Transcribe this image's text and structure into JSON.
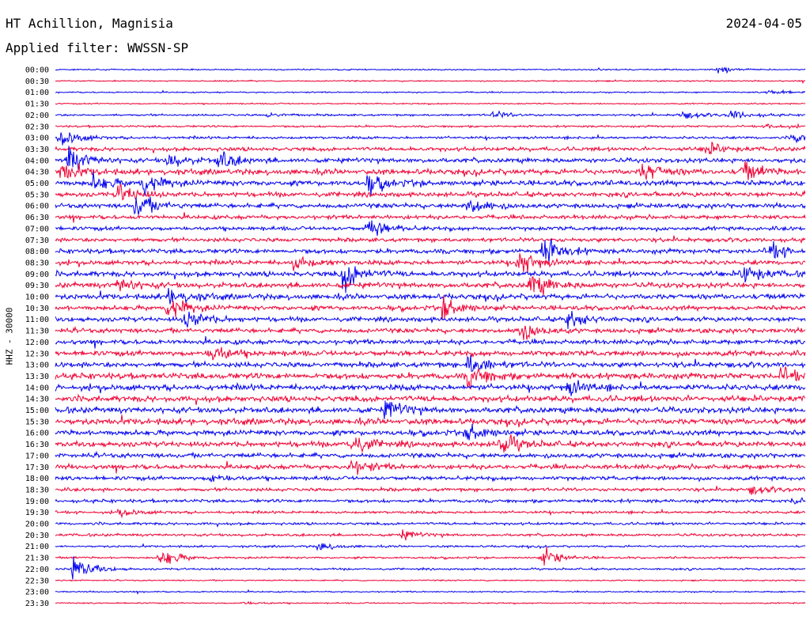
{
  "header": {
    "station": "HT Achillion, Magnisia",
    "date": "2024-04-05",
    "filter": "Applied filter: WWSSN-SP"
  },
  "axis": {
    "ylabel": "HHZ - 30000"
  },
  "colors": {
    "trace_a": "#0000ee",
    "trace_b": "#ee0033",
    "background": "#ffffff"
  },
  "chart_data": {
    "type": "line",
    "chart_kind": "helicorder",
    "title": "HT Achillion, Magnisia",
    "subtitle": "Applied filter: WWSSN-SP",
    "ylabel": "HHZ - 30000",
    "xlabel": "",
    "row_labels": [
      "00:00",
      "00:30",
      "01:00",
      "01:30",
      "02:00",
      "02:30",
      "03:00",
      "03:30",
      "04:00",
      "04:30",
      "05:00",
      "05:30",
      "06:00",
      "06:30",
      "07:00",
      "07:30",
      "08:00",
      "08:30",
      "09:00",
      "09:30",
      "10:00",
      "10:30",
      "11:00",
      "11:30",
      "12:00",
      "12:30",
      "13:00",
      "13:30",
      "14:00",
      "14:30",
      "15:00",
      "15:30",
      "16:00",
      "16:30",
      "17:00",
      "17:30",
      "18:00",
      "18:30",
      "19:00",
      "19:30",
      "20:00",
      "20:30",
      "21:00",
      "21:30",
      "22:00",
      "22:30",
      "23:00",
      "23:30"
    ],
    "noise_level": [
      0.2,
      0.2,
      0.2,
      0.2,
      0.3,
      0.3,
      0.4,
      0.6,
      0.7,
      0.8,
      0.8,
      0.7,
      0.7,
      0.6,
      0.6,
      0.6,
      0.7,
      0.7,
      0.8,
      0.8,
      0.8,
      0.7,
      0.7,
      0.7,
      0.7,
      0.8,
      0.8,
      0.9,
      0.9,
      0.9,
      0.9,
      0.9,
      0.8,
      0.8,
      0.7,
      0.7,
      0.6,
      0.5,
      0.5,
      0.4,
      0.4,
      0.4,
      0.3,
      0.3,
      0.3,
      0.2,
      0.2,
      0.2
    ],
    "events": [
      {
        "row": 0,
        "minute": 26.5,
        "amp": 0.8
      },
      {
        "row": 2,
        "minute": 28.5,
        "amp": 0.9
      },
      {
        "row": 4,
        "minute": 8.5,
        "amp": 0.6
      },
      {
        "row": 4,
        "minute": 17.5,
        "amp": 1.0
      },
      {
        "row": 4,
        "minute": 25,
        "amp": 1.2
      },
      {
        "row": 4,
        "minute": 27,
        "amp": 1.5
      },
      {
        "row": 5,
        "minute": 28.5,
        "amp": 0.8
      },
      {
        "row": 6,
        "minute": 0.2,
        "amp": 2.5
      },
      {
        "row": 6,
        "minute": 29.5,
        "amp": 1.5
      },
      {
        "row": 7,
        "minute": 26,
        "amp": 1.8
      },
      {
        "row": 8,
        "minute": 0.5,
        "amp": 3.5
      },
      {
        "row": 8,
        "minute": 4.5,
        "amp": 2.0
      },
      {
        "row": 8,
        "minute": 6.5,
        "amp": 2.8
      },
      {
        "row": 9,
        "minute": 0.2,
        "amp": 2.5
      },
      {
        "row": 9,
        "minute": 23.5,
        "amp": 3.0
      },
      {
        "row": 9,
        "minute": 27.5,
        "amp": 2.5
      },
      {
        "row": 10,
        "minute": 1.5,
        "amp": 2.0
      },
      {
        "row": 10,
        "minute": 3.5,
        "amp": 3.0
      },
      {
        "row": 10,
        "minute": 12.5,
        "amp": 2.5
      },
      {
        "row": 11,
        "minute": 2.5,
        "amp": 2.8
      },
      {
        "row": 12,
        "minute": 3.2,
        "amp": 3.5
      },
      {
        "row": 12,
        "minute": 16.5,
        "amp": 2.5
      },
      {
        "row": 14,
        "minute": 12.5,
        "amp": 2.8
      },
      {
        "row": 16,
        "minute": 19.5,
        "amp": 4.0
      },
      {
        "row": 16,
        "minute": 28.5,
        "amp": 2.5
      },
      {
        "row": 17,
        "minute": 18.5,
        "amp": 3.5
      },
      {
        "row": 17,
        "minute": 9.5,
        "amp": 2.0
      },
      {
        "row": 18,
        "minute": 11.5,
        "amp": 4.5
      },
      {
        "row": 18,
        "minute": 27.5,
        "amp": 2.8
      },
      {
        "row": 19,
        "minute": 2.5,
        "amp": 2.0
      },
      {
        "row": 19,
        "minute": 19,
        "amp": 3.5
      },
      {
        "row": 20,
        "minute": 4.5,
        "amp": 2.5
      },
      {
        "row": 21,
        "minute": 4.5,
        "amp": 3.5
      },
      {
        "row": 21,
        "minute": 15.5,
        "amp": 3.0
      },
      {
        "row": 22,
        "minute": 5.2,
        "amp": 3.0
      },
      {
        "row": 22,
        "minute": 20.5,
        "amp": 2.5
      },
      {
        "row": 23,
        "minute": 18.5,
        "amp": 3.0
      },
      {
        "row": 25,
        "minute": 6.2,
        "amp": 2.5
      },
      {
        "row": 26,
        "minute": 16.5,
        "amp": 2.8
      },
      {
        "row": 27,
        "minute": 16.5,
        "amp": 3.0
      },
      {
        "row": 27,
        "minute": 29,
        "amp": 2.0
      },
      {
        "row": 28,
        "minute": 20.5,
        "amp": 2.0
      },
      {
        "row": 30,
        "minute": 13.2,
        "amp": 2.5
      },
      {
        "row": 32,
        "minute": 16.5,
        "amp": 2.5
      },
      {
        "row": 33,
        "minute": 11.8,
        "amp": 3.0
      },
      {
        "row": 33,
        "minute": 17.8,
        "amp": 3.0
      },
      {
        "row": 35,
        "minute": 11.8,
        "amp": 2.0
      },
      {
        "row": 36,
        "minute": 6.2,
        "amp": 1.2
      },
      {
        "row": 37,
        "minute": 27.8,
        "amp": 1.2
      },
      {
        "row": 38,
        "minute": 29.5,
        "amp": 1.0
      },
      {
        "row": 39,
        "minute": 2.5,
        "amp": 1.2
      },
      {
        "row": 41,
        "minute": 13.8,
        "amp": 1.2
      },
      {
        "row": 42,
        "minute": 10.5,
        "amp": 1.2
      },
      {
        "row": 43,
        "minute": 4.2,
        "amp": 2.5
      },
      {
        "row": 43,
        "minute": 19.5,
        "amp": 2.5
      },
      {
        "row": 44,
        "minute": 0.7,
        "amp": 3.5
      },
      {
        "row": 47,
        "minute": 7.5,
        "amp": 0.4
      }
    ],
    "row_minutes": 30,
    "grid": false,
    "legend": "none"
  }
}
